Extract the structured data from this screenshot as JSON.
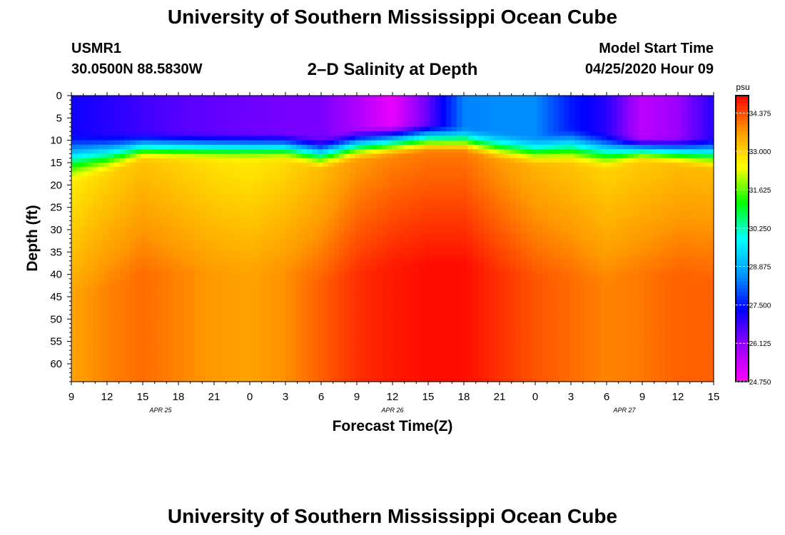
{
  "page": {
    "top_title": "University of Southern Mississippi Ocean Cube",
    "bottom_title": "University of Southern Mississippi Ocean Cube",
    "station_id": "USMR1",
    "station_coords": "30.0500N 88.5830W",
    "chart_title": "2–D Salinity at Depth",
    "model_start_label": "Model Start Time",
    "model_start_value": "04/25/2020 Hour 09"
  },
  "chart_data": {
    "type": "heatmap",
    "title": "2–D Salinity at Depth",
    "xlabel": "Forecast Time(Z)",
    "ylabel": "Depth (ft)",
    "x_ticks": [
      "9",
      "12",
      "15",
      "18",
      "21",
      "0",
      "3",
      "6",
      "9",
      "12",
      "15",
      "18",
      "21",
      "0",
      "3",
      "6",
      "9",
      "12",
      "15"
    ],
    "x_date_labels": [
      {
        "text": "APR 25",
        "tick_index": 2.5
      },
      {
        "text": "APR 26",
        "tick_index": 9
      },
      {
        "text": "APR 27",
        "tick_index": 15.5
      }
    ],
    "y_ticks": [
      0,
      5,
      10,
      15,
      20,
      25,
      30,
      35,
      40,
      45,
      50,
      55,
      60
    ],
    "ylim": [
      0,
      64
    ],
    "colorbar": {
      "unit": "psu",
      "min": 24.75,
      "max": 35.0,
      "tick_labels": [
        "34.375",
        "33.000",
        "31.625",
        "30.250",
        "28.875",
        "27.500",
        "26.125",
        "24.750"
      ],
      "colors": [
        "#ff00ff",
        "#9900ff",
        "#0000ff",
        "#0099ff",
        "#00ffff",
        "#00ff00",
        "#ffff00",
        "#ff9900",
        "#ff0000"
      ]
    },
    "hours": [
      0,
      6,
      12,
      18,
      24,
      30,
      36,
      42,
      48,
      54,
      60,
      66,
      72,
      78,
      84,
      90,
      96,
      102,
      108
    ],
    "mixed_layer_depth_ft": [
      8,
      8,
      8,
      8,
      8,
      8,
      8,
      9,
      7,
      6,
      6,
      7,
      8,
      9,
      7,
      8,
      9,
      9,
      9
    ],
    "halocline_depth_ft": [
      20,
      18,
      15,
      15,
      15,
      15,
      15,
      17,
      15,
      14,
      13,
      13,
      15,
      16,
      16,
      17,
      15,
      16,
      17
    ],
    "surface_salinity_psu": [
      27.2,
      27.0,
      26.8,
      26.6,
      26.5,
      26.4,
      26.3,
      26.3,
      25.8,
      25.0,
      26.5,
      28.4,
      28.5,
      28.5,
      27.5,
      27.0,
      25.6,
      26.0,
      27.0
    ],
    "deep_salinity_psu": [
      33.6,
      33.9,
      34.1,
      33.9,
      33.7,
      33.6,
      33.8,
      34.2,
      34.6,
      34.8,
      34.9,
      34.9,
      34.6,
      34.3,
      34.1,
      33.9,
      34.0,
      34.2,
      34.2
    ]
  }
}
